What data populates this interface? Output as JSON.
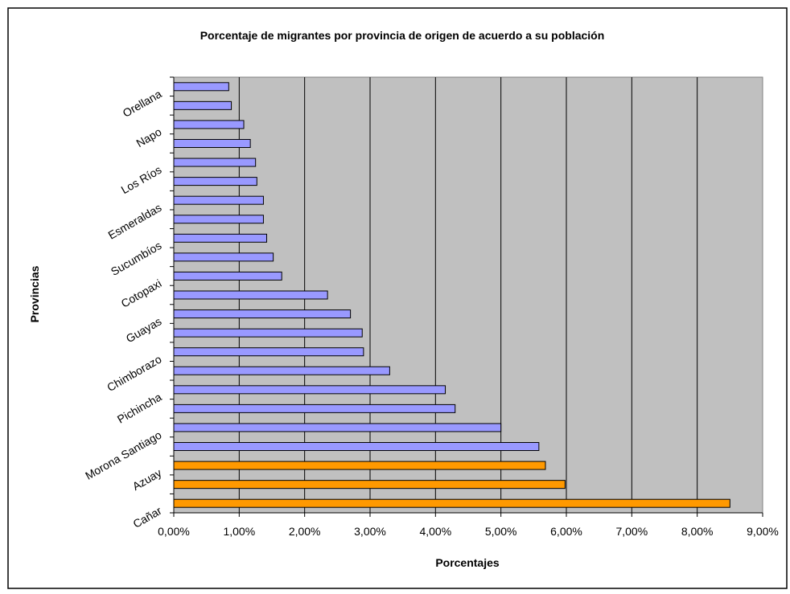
{
  "chart_data": {
    "type": "bar",
    "orientation": "horizontal",
    "title": "Porcentaje de migrantes por provincia de origen de acuerdo a su población",
    "xlabel": "Porcentajes",
    "ylabel": "Provincias",
    "xlim": [
      0,
      0.09
    ],
    "x_ticks": [
      "0,00%",
      "1,00%",
      "2,00%",
      "3,00%",
      "4,00%",
      "5,00%",
      "6,00%",
      "7,00%",
      "8,00%",
      "9,00%"
    ],
    "grid": "vertical",
    "legend": "none",
    "visible_category_labels": [
      "Cañar",
      "Azuay",
      "Morona Santiago",
      "Pichincha",
      "Chimborazo",
      "Guayas",
      "Cotopaxi",
      "Sucumbíos",
      "Esmeraldas",
      "Los Ríos",
      "Napo",
      "Orellana"
    ],
    "values": [
      0.085,
      0.0598,
      0.0568,
      0.0558,
      0.05,
      0.043,
      0.0415,
      0.033,
      0.029,
      0.0288,
      0.027,
      0.0235,
      0.0165,
      0.0152,
      0.0142,
      0.0137,
      0.0137,
      0.0127,
      0.0125,
      0.0117,
      0.0107,
      0.0088,
      0.0084
    ],
    "highlight_count": 3,
    "colors": {
      "plot_background": "#c0c0c0",
      "bar_default": "#9999ff",
      "bar_highlight": "#ff9900",
      "bar_border": "#000000",
      "gridline": "#000000"
    }
  }
}
